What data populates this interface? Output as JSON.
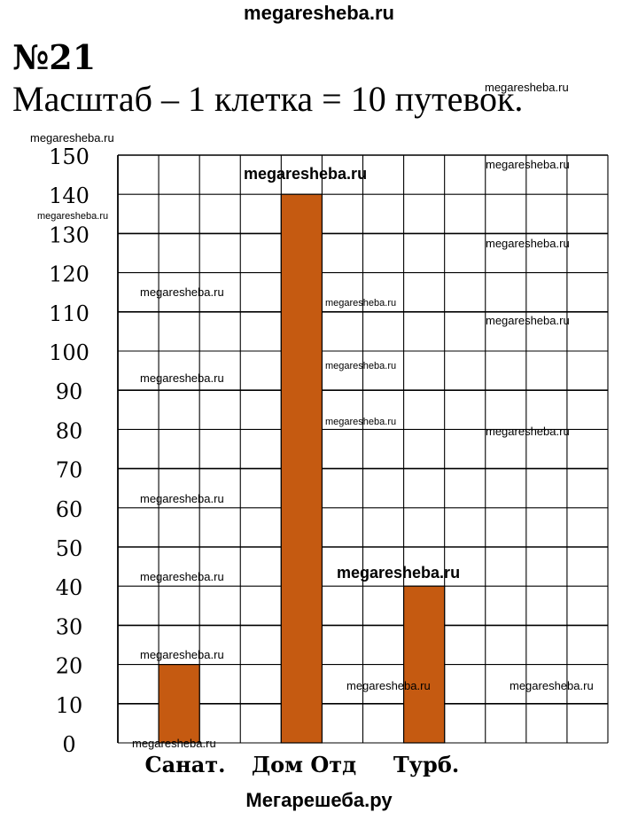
{
  "header": {
    "site": "megaresheba.ru",
    "task_number": "№21",
    "scale_note": "Масштаб – 1 клетка = 10 путевок."
  },
  "footer": {
    "site": "Мегарешеба.ру"
  },
  "chart_data": {
    "type": "bar",
    "categories": [
      "Санат.",
      "Дом Отд",
      "Турб."
    ],
    "values": [
      20,
      140,
      40
    ],
    "y_ticks": [
      "0",
      "10",
      "20",
      "30",
      "40",
      "50",
      "60",
      "70",
      "80",
      "90",
      "100",
      "110",
      "120",
      "130",
      "140",
      "150"
    ],
    "ylim": [
      0,
      150
    ],
    "grid": true,
    "bar_color": "#c55a11"
  },
  "watermarks": [
    "megaresheba.ru",
    "megaresheba.ru",
    "megaresheba.ru",
    "megaresheba.ru",
    "megaresheba.ru",
    "megaresheba.ru",
    "megaresheba.ru",
    "megaresheba.ru",
    "megaresheba.ru",
    "megaresheba.ru",
    "megaresheba.ru",
    "megaresheba.ru",
    "megaresheba.ru",
    "megaresheba.ru",
    "megaresheba.ru",
    "megaresheba.ru",
    "megaresheba.ru",
    "megaresheba.ru",
    "megaresheba.ru",
    "megaresheba.ru"
  ]
}
